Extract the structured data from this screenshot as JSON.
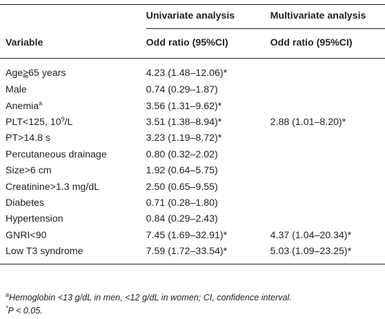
{
  "header": {
    "variable": "Variable",
    "univariate": "Univariate analysis",
    "multivariate": "Multivariate analysis",
    "uni_sub": "Odd ratio (95%CI)",
    "multi_sub": "Odd ratio (95%CI)"
  },
  "rows": [
    {
      "pre": "Age",
      "ge": "≥",
      "post": "65 years",
      "sup": "",
      "tail": "",
      "uni": "4.23 (1.48–12.06)*",
      "multi": ""
    },
    {
      "pre": "Male",
      "ge": "",
      "post": "",
      "sup": "",
      "tail": "",
      "uni": "0.74 (0.29–1.87)",
      "multi": ""
    },
    {
      "pre": "Anemia",
      "ge": "",
      "post": "",
      "sup": "a",
      "tail": "",
      "uni": "3.56 (1.31–9.62)*",
      "multi": ""
    },
    {
      "pre": "PLT<125, 10",
      "ge": "",
      "post": "",
      "sup": "9",
      "tail": "/L",
      "uni": "3.51 (1.38–8.94)*",
      "multi": "2.88 (1.01–8.20)*"
    },
    {
      "pre": "PT>14.8 s",
      "ge": "",
      "post": "",
      "sup": "",
      "tail": "",
      "uni": "3.23 (1.19–8.72)*",
      "multi": ""
    },
    {
      "pre": "Percutaneous drainage",
      "ge": "",
      "post": "",
      "sup": "",
      "tail": "",
      "uni": "0.80 (0.32–2.02)",
      "multi": ""
    },
    {
      "pre": "Size>6 cm",
      "ge": "",
      "post": "",
      "sup": "",
      "tail": "",
      "uni": "1.92 (0.64–5.75)",
      "multi": ""
    },
    {
      "pre": "Creatinine>1.3 mg/dL",
      "ge": "",
      "post": "",
      "sup": "",
      "tail": "",
      "uni": "2.50 (0.65–9.55)",
      "multi": ""
    },
    {
      "pre": "Diabetes",
      "ge": "",
      "post": "",
      "sup": "",
      "tail": "",
      "uni": "0.71 (0.28–1.80)",
      "multi": ""
    },
    {
      "pre": "Hypertension",
      "ge": "",
      "post": "",
      "sup": "",
      "tail": "",
      "uni": "0.84 (0.29–2.43)",
      "multi": ""
    },
    {
      "pre": "GNRI<90",
      "ge": "",
      "post": "",
      "sup": "",
      "tail": "",
      "uni": "7.45 (1.69–32.91)*",
      "multi": "4.37 (1.04–20.34)*"
    },
    {
      "pre": "Low T3 syndrome",
      "ge": "",
      "post": "",
      "sup": "",
      "tail": "",
      "uni": "7.59 (1.72–33.54)*",
      "multi": "5.03 (1.09–23.25)*"
    }
  ],
  "footnotes": {
    "a_mark": "a",
    "a_text": "Hemoglobin <13 g/dL in men, <12 g/dL in women; CI, confidence interval.",
    "p_mark": "*",
    "p_text": "P < 0.05."
  }
}
